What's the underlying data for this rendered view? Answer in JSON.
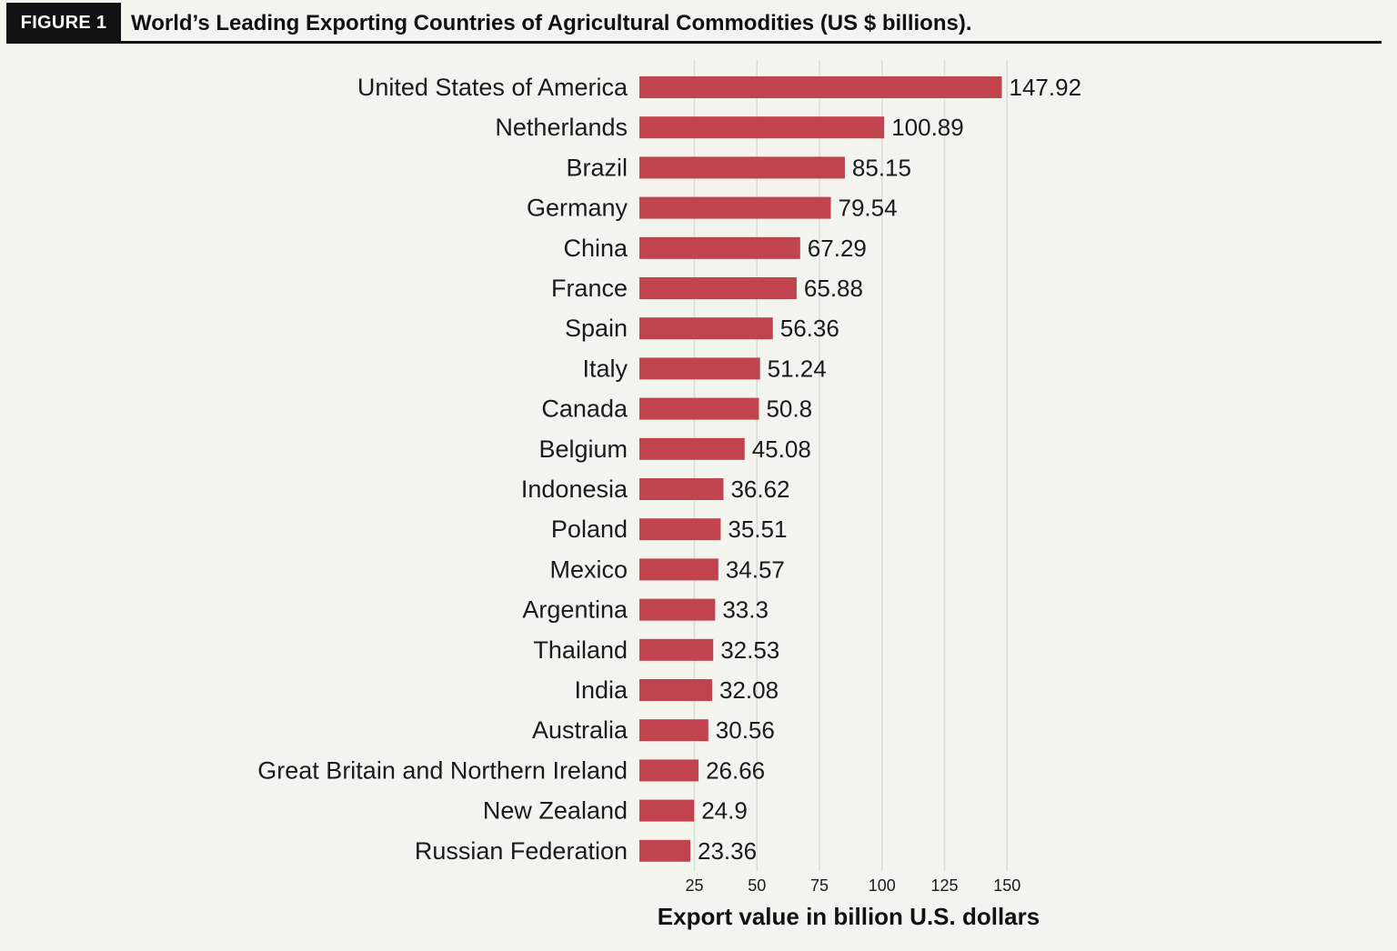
{
  "figure": {
    "badge": "FIGURE 1",
    "title": "World’s Leading Exporting Countries of Agricultural Commodities (US $ billions)."
  },
  "chart_data": {
    "type": "bar",
    "orientation": "horizontal",
    "categories": [
      "United States of America",
      "Netherlands",
      "Brazil",
      "Germany",
      "China",
      "France",
      "Spain",
      "Italy",
      "Canada",
      "Belgium",
      "Indonesia",
      "Poland",
      "Mexico",
      "Argentina",
      "Thailand",
      "India",
      "Australia",
      "Great Britain and Northern Ireland",
      "New Zealand",
      "Russian Federation"
    ],
    "values": [
      147.92,
      100.89,
      85.15,
      79.54,
      67.29,
      65.88,
      56.36,
      51.24,
      50.8,
      45.08,
      36.62,
      35.51,
      34.57,
      33.3,
      32.53,
      32.08,
      30.56,
      26.66,
      24.9,
      23.36
    ],
    "value_labels": [
      "147.92",
      "100.89",
      "85.15",
      "79.54",
      "67.29",
      "65.88",
      "56.36",
      "51.24",
      "50.8",
      "45.08",
      "36.62",
      "35.51",
      "34.57",
      "33.3",
      "32.53",
      "32.08",
      "30.56",
      "26.66",
      "24.9",
      "23.36"
    ],
    "xlabel": "Export value in billion U.S. dollars",
    "xticks": [
      25,
      50,
      75,
      100,
      125,
      150
    ],
    "xlim": [
      3,
      150
    ],
    "grid": "vertical",
    "legend": "none",
    "bar_color": "#c0434d",
    "grid_color": "#dcdcd6"
  }
}
